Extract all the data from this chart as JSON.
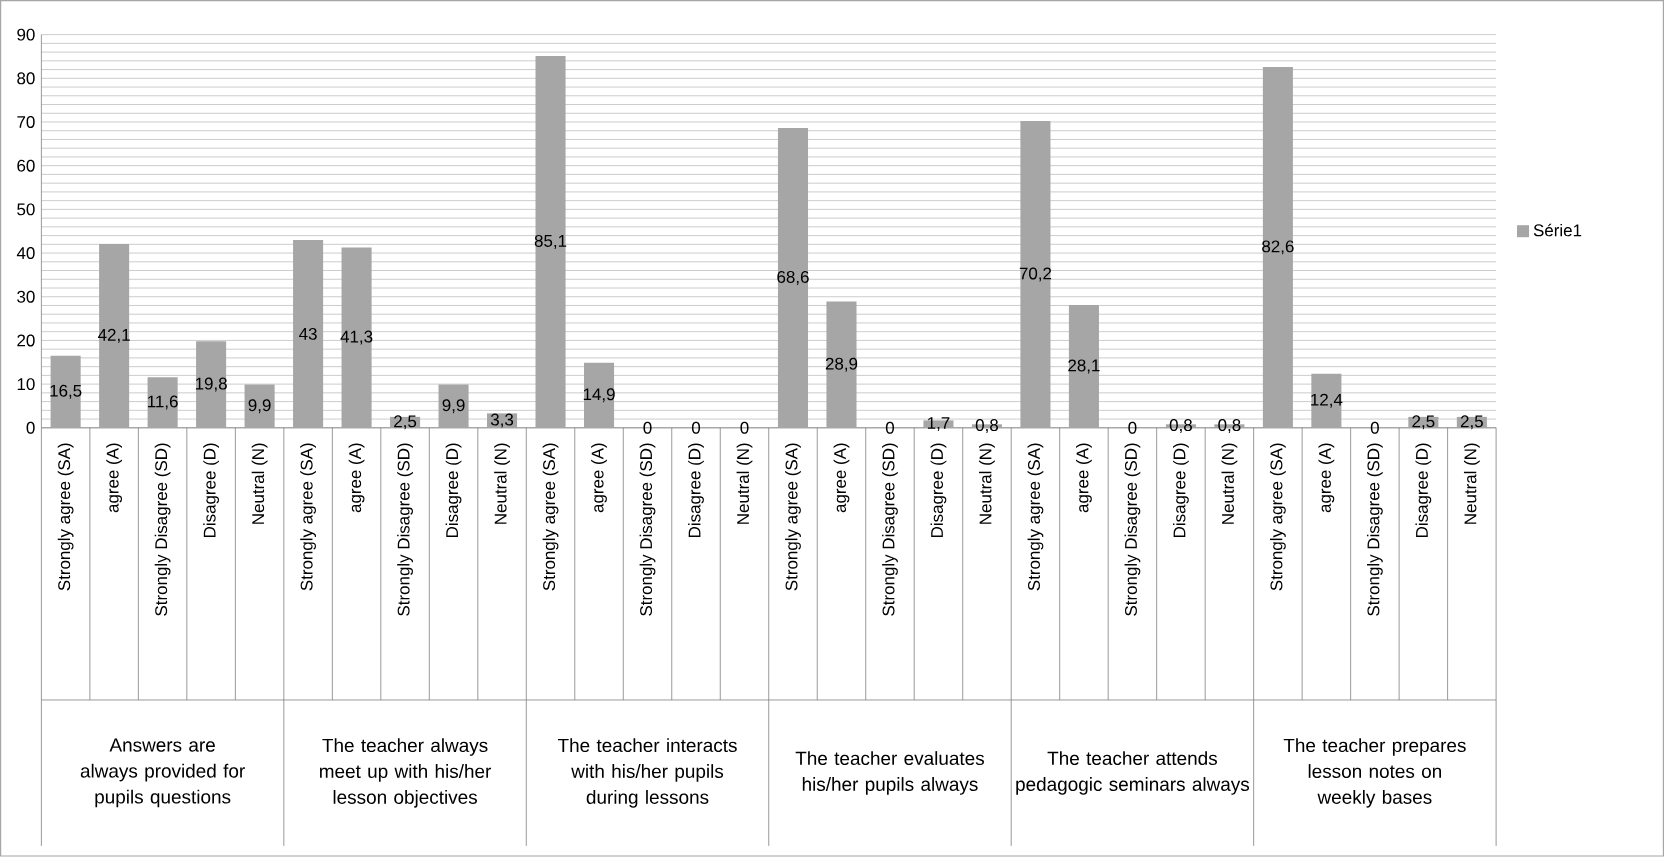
{
  "chart_data": {
    "type": "bar",
    "categories": [
      "Strongly agree (SA)",
      "agree (A)",
      "Strongly Disagree (SD)",
      "Disagree (D)",
      "Neutral (N)",
      "Strongly agree (SA)",
      "agree (A)",
      "Strongly Disagree (SD)",
      "Disagree (D)",
      "Neutral (N)",
      "Strongly agree (SA)",
      "agree (A)",
      "Strongly Disagree (SD)",
      "Disagree (D)",
      "Neutral (N)",
      "Strongly agree (SA)",
      "agree (A)",
      "Strongly Disagree (SD)",
      "Disagree (D)",
      "Neutral (N)",
      "Strongly agree (SA)",
      "agree (A)",
      "Strongly Disagree (SD)",
      "Disagree (D)",
      "Neutral (N)",
      "Strongly agree (SA)",
      "agree (A)",
      "Strongly Disagree (SD)",
      "Disagree (D)",
      "Neutral (N)"
    ],
    "series": [
      {
        "name": "Série1",
        "color": "#a6a6a6",
        "values": [
          16.5,
          42.1,
          11.6,
          19.8,
          9.9,
          43,
          41.3,
          2.5,
          9.9,
          3.3,
          85.1,
          14.9,
          0,
          0,
          0,
          68.6,
          28.9,
          0,
          1.7,
          0.8,
          70.2,
          28.1,
          0,
          0.8,
          0.8,
          82.6,
          12.4,
          0,
          2.5,
          2.5
        ],
        "value_labels": [
          "16,5",
          "42,1",
          "11,6",
          "19,8",
          "9,9",
          "43",
          "41,3",
          "2,5",
          "9,9",
          "3,3",
          "85,1",
          "14,9",
          "0",
          "0",
          "0",
          "68,6",
          "28,9",
          "0",
          "1,7",
          "0,8",
          "70,2",
          "28,1",
          "0",
          "0,8",
          "0,8",
          "82,6",
          "12,4",
          "0",
          "2,5",
          "2,5"
        ]
      }
    ],
    "annotations": [
      "Answers are always provided for pupils questions",
      "The teacher always meet up with his/her lesson objectives",
      "The teacher interacts with his/her pupils during lessons",
      "The teacher evaluates his/her pupils always",
      "The teacher attends pedagogic seminars always",
      "The teacher prepares lesson notes on weekly bases"
    ],
    "ylim": [
      0,
      90
    ],
    "yticks": [
      0,
      10,
      20,
      30,
      40,
      50,
      60,
      70,
      80,
      90
    ],
    "grid": true,
    "legend": "right"
  }
}
